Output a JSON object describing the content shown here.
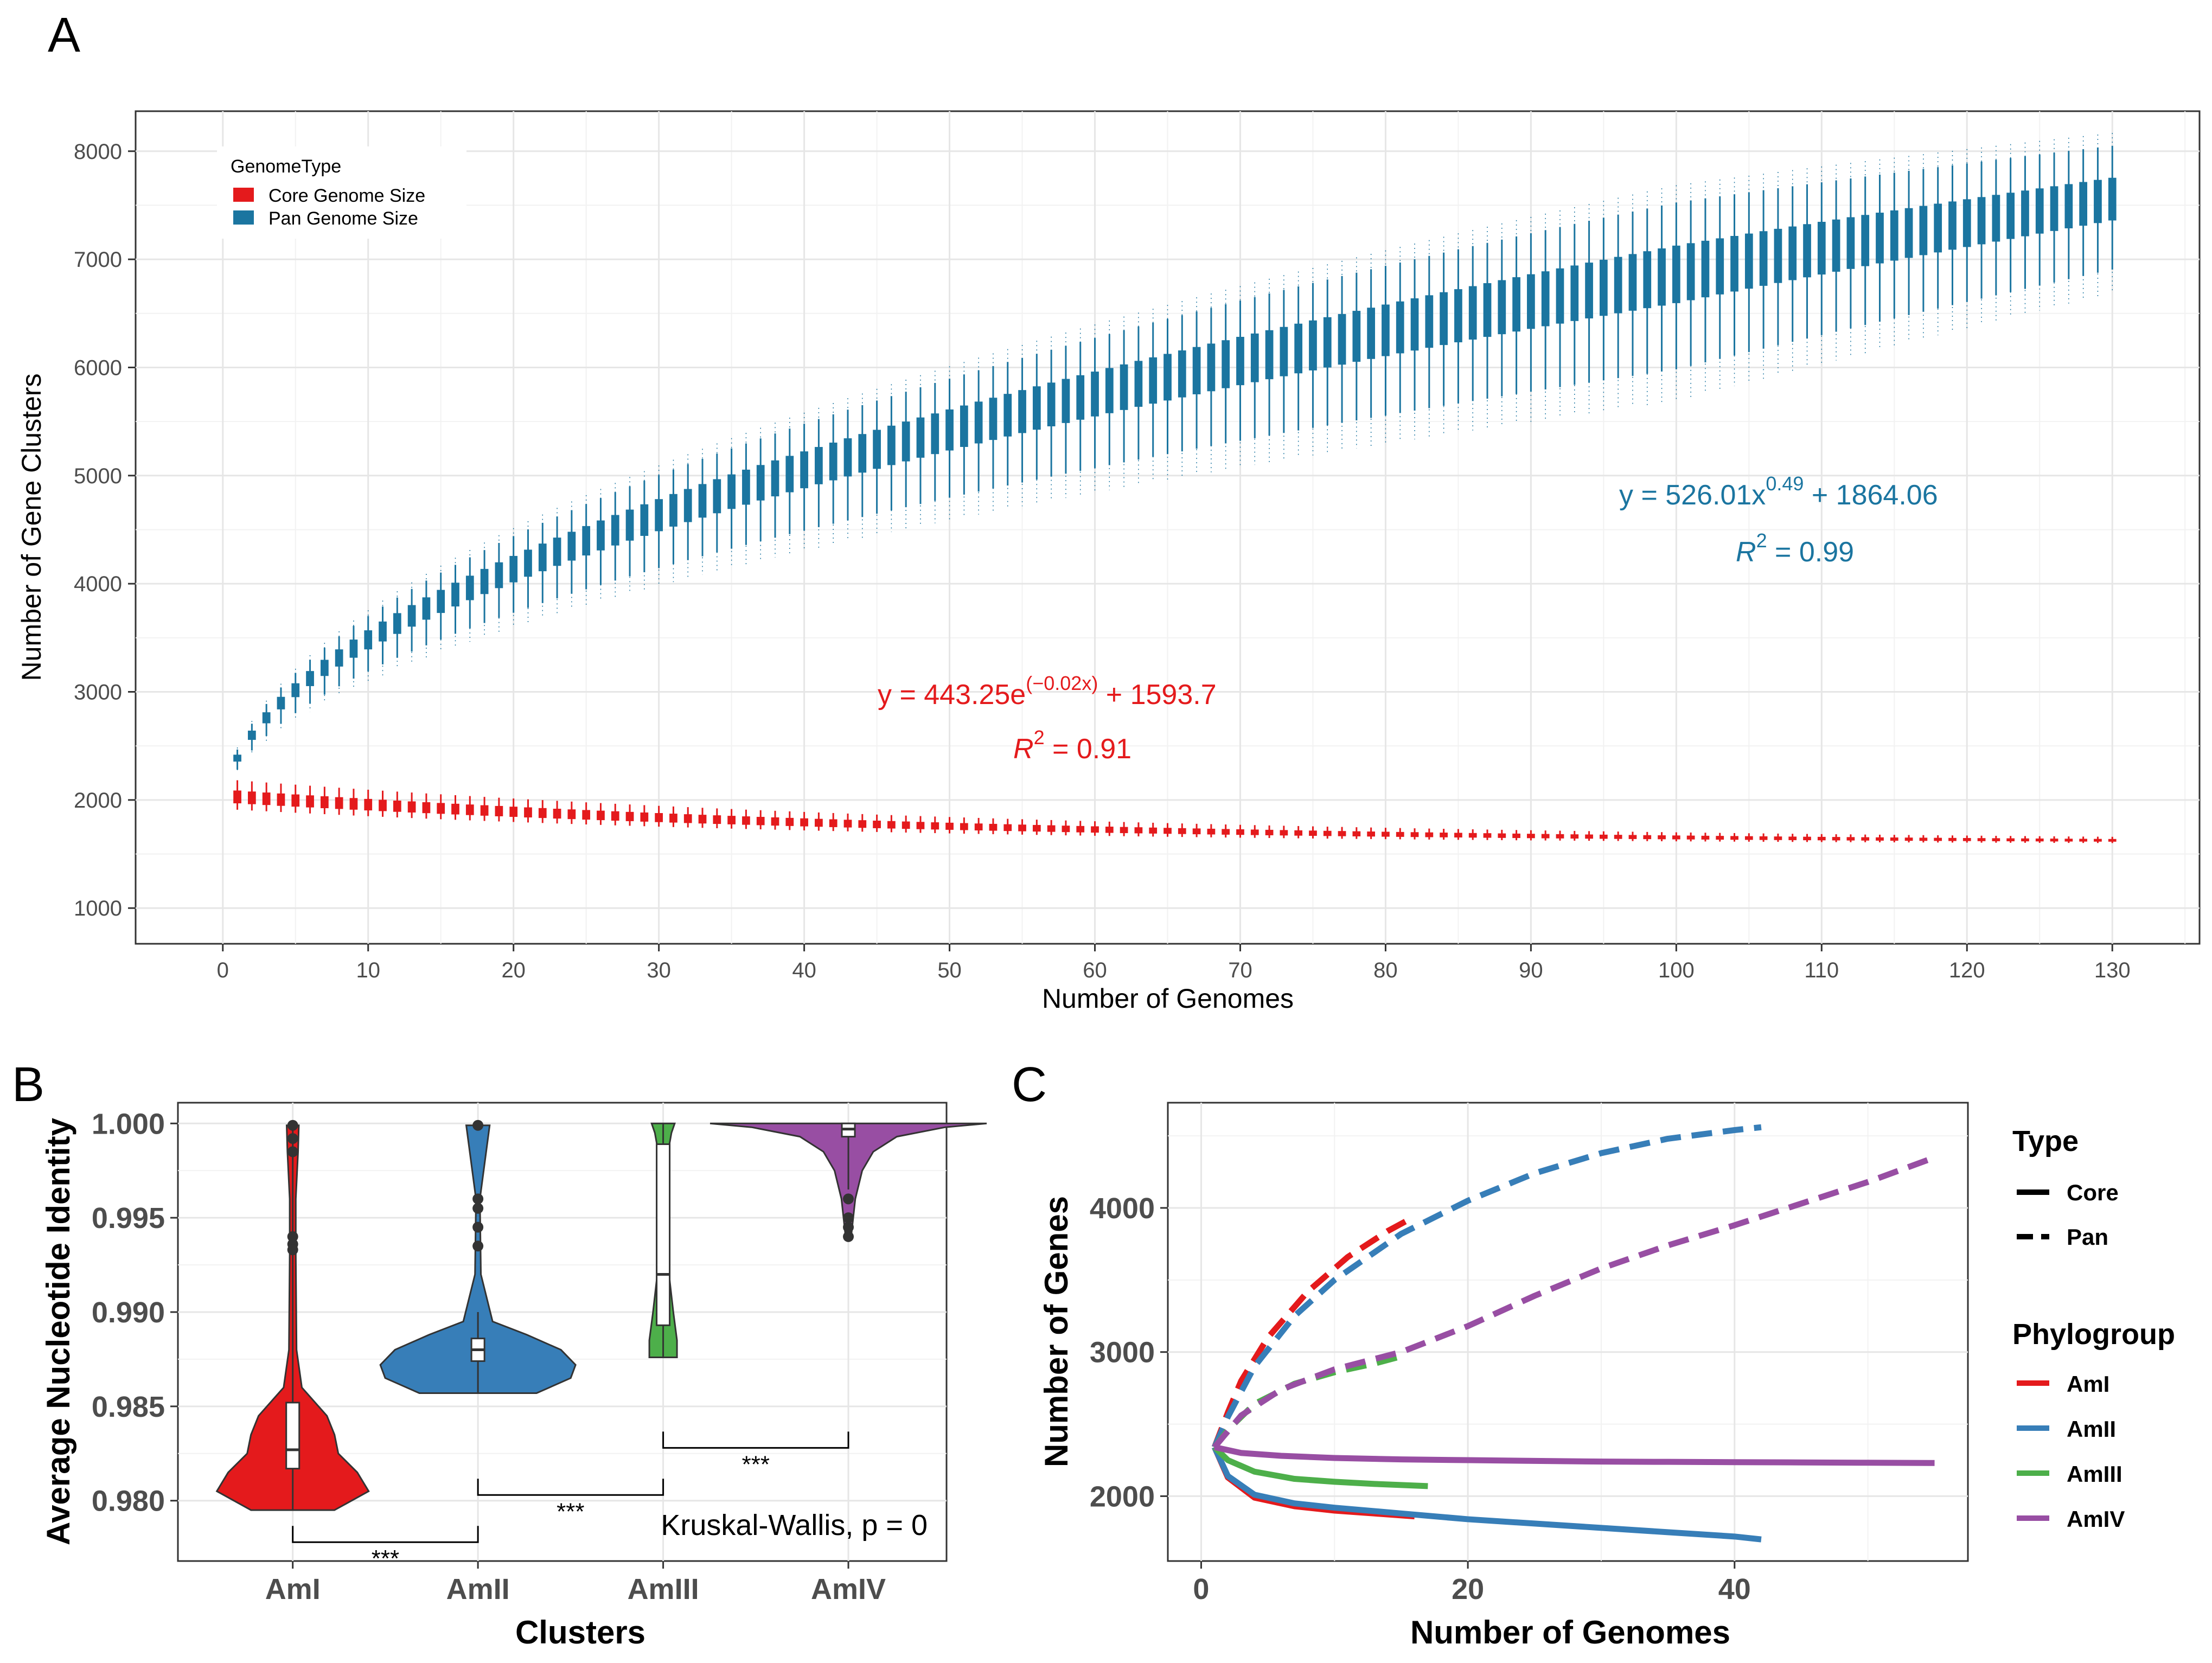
{
  "panels": {
    "a": {
      "label": "A"
    },
    "b": {
      "label": "B"
    },
    "c": {
      "label": "C"
    }
  },
  "chart_data": [
    {
      "id": "A",
      "type": "box",
      "xlabel": "Number of Genomes",
      "ylabel": "Number of Gene Clusters",
      "xlim": [
        -6,
        136
      ],
      "ylim": [
        670,
        8370
      ],
      "xticks": [
        0,
        10,
        20,
        30,
        40,
        50,
        60,
        70,
        80,
        90,
        100,
        110,
        120,
        130
      ],
      "yticks": [
        1000,
        2000,
        3000,
        4000,
        5000,
        6000,
        7000,
        8000
      ],
      "legend": {
        "title": "GenomeType",
        "position": "top-left",
        "entries": [
          {
            "name": "Core Genome Size",
            "color": "#e41a1c"
          },
          {
            "name": "Pan Genome Size",
            "color": "#1b75a0"
          }
        ]
      },
      "series": [
        {
          "name": "Pan Genome Size",
          "color": "#1b75a0",
          "model": "power",
          "a": 526.01,
          "b": 0.49,
          "c": 1864.06,
          "x_range": [
            1,
            130
          ]
        },
        {
          "name": "Core Genome Size",
          "color": "#e41a1c",
          "model": "exponential",
          "a": 443.25,
          "b": -0.02,
          "c": 1593.7,
          "x_range": [
            1,
            130
          ]
        }
      ],
      "annotations": {
        "pan_eq_prefix": "y = 526.01x",
        "pan_eq_exp": "0.49",
        "pan_eq_suffix": " + 1864.06",
        "pan_r2_sym": "R",
        "pan_r2_exp": "2",
        "pan_r2_val": " = 0.99",
        "core_eq_prefix": "y = 443.25e",
        "core_eq_exp": "(−0.02x)",
        "core_eq_suffix": " + 1593.7",
        "core_r2_sym": "R",
        "core_r2_exp": "2",
        "core_r2_val": " = 0.91"
      }
    },
    {
      "id": "B",
      "type": "violin",
      "xlabel": "Clusters",
      "ylabel": "Average Nucleotide Identity",
      "categories": [
        "AmI",
        "AmII",
        "AmIII",
        "AmIV"
      ],
      "colors": [
        "#e41a1c",
        "#377eb8",
        "#4daf4a",
        "#984ea3"
      ],
      "ylim": [
        0.9768,
        1.0011
      ],
      "yticks": [
        "0.980",
        "0.985",
        "0.990",
        "0.995",
        "1.000"
      ],
      "ytick_values": [
        0.98,
        0.985,
        0.99,
        0.995,
        1.0
      ],
      "box": [
        {
          "category": "AmI",
          "q1": 0.9817,
          "median": 0.9827,
          "q3": 0.9852,
          "min": 0.9795,
          "max": 0.9999
        },
        {
          "category": "AmII",
          "q1": 0.9874,
          "median": 0.988,
          "q3": 0.9886,
          "min": 0.9857,
          "max": 0.99
        },
        {
          "category": "AmIII",
          "q1": 0.9893,
          "median": 0.992,
          "q3": 0.9989,
          "min": 0.9876,
          "max": 1.0
        },
        {
          "category": "AmIV",
          "q1": 0.9993,
          "median": 0.9997,
          "q3": 1.0,
          "min": 0.9965,
          "max": 1.0
        }
      ],
      "comparisons": [
        {
          "groups": [
            "AmI",
            "AmII"
          ],
          "label": "***"
        },
        {
          "groups": [
            "AmII",
            "AmIII"
          ],
          "label": "***"
        },
        {
          "groups": [
            "AmIII",
            "AmIV"
          ],
          "label": "***"
        }
      ],
      "test_label": "Kruskal-Wallis, p = 0"
    },
    {
      "id": "C",
      "type": "line",
      "xlabel": "Number of Genomes",
      "ylabel": "Number of Genes",
      "xlim": [
        -2.5,
        57.5
      ],
      "ylim": [
        1550,
        4730
      ],
      "xticks": [
        0,
        20,
        40
      ],
      "yticks": [
        2000,
        3000,
        4000
      ],
      "legend_type": {
        "title": "Type",
        "entries": [
          "Core",
          "Pan"
        ]
      },
      "legend_phylo": {
        "title": "Phylogroup",
        "entries": [
          "AmI",
          "AmII",
          "AmIII",
          "AmIV"
        ]
      },
      "colors": {
        "AmI": "#e41a1c",
        "AmII": "#377eb8",
        "AmIII": "#4daf4a",
        "AmIV": "#984ea3"
      },
      "series": [
        {
          "group": "AmI",
          "type": "Pan",
          "x": [
            1,
            2,
            3,
            5,
            8,
            11,
            14,
            16
          ],
          "y": [
            2340,
            2580,
            2800,
            3100,
            3420,
            3660,
            3840,
            3940
          ]
        },
        {
          "group": "AmII",
          "type": "Pan",
          "x": [
            1,
            2,
            4,
            7,
            10,
            15,
            20,
            25,
            30,
            35,
            40,
            42
          ],
          "y": [
            2340,
            2550,
            2900,
            3250,
            3500,
            3820,
            4050,
            4240,
            4380,
            4480,
            4540,
            4560
          ]
        },
        {
          "group": "AmIII",
          "type": "Pan",
          "x": [
            1,
            2,
            4,
            7,
            10,
            13,
            15
          ],
          "y": [
            2340,
            2460,
            2640,
            2780,
            2860,
            2920,
            2970
          ]
        },
        {
          "group": "AmIV",
          "type": "Pan",
          "x": [
            1,
            3,
            6,
            10,
            15,
            20,
            25,
            30,
            35,
            40,
            45,
            50,
            55
          ],
          "y": [
            2340,
            2560,
            2740,
            2880,
            3000,
            3180,
            3390,
            3580,
            3740,
            3880,
            4030,
            4180,
            4350
          ]
        },
        {
          "group": "AmI",
          "type": "Core",
          "x": [
            1,
            2,
            4,
            7,
            10,
            13,
            16
          ],
          "y": [
            2340,
            2130,
            1990,
            1930,
            1900,
            1880,
            1860
          ]
        },
        {
          "group": "AmII",
          "type": "Core",
          "x": [
            1,
            2,
            4,
            7,
            10,
            15,
            20,
            25,
            30,
            35,
            40,
            42
          ],
          "y": [
            2340,
            2140,
            2010,
            1950,
            1920,
            1880,
            1840,
            1810,
            1780,
            1750,
            1720,
            1700
          ]
        },
        {
          "group": "AmIII",
          "type": "Core",
          "x": [
            1,
            2,
            4,
            7,
            10,
            13,
            17
          ],
          "y": [
            2340,
            2250,
            2170,
            2120,
            2100,
            2085,
            2070
          ]
        },
        {
          "group": "AmIV",
          "type": "Core",
          "x": [
            1,
            3,
            6,
            10,
            15,
            20,
            25,
            30,
            35,
            40,
            45,
            50,
            55
          ],
          "y": [
            2340,
            2300,
            2280,
            2265,
            2255,
            2250,
            2245,
            2240,
            2238,
            2236,
            2234,
            2232,
            2230
          ]
        }
      ]
    }
  ]
}
